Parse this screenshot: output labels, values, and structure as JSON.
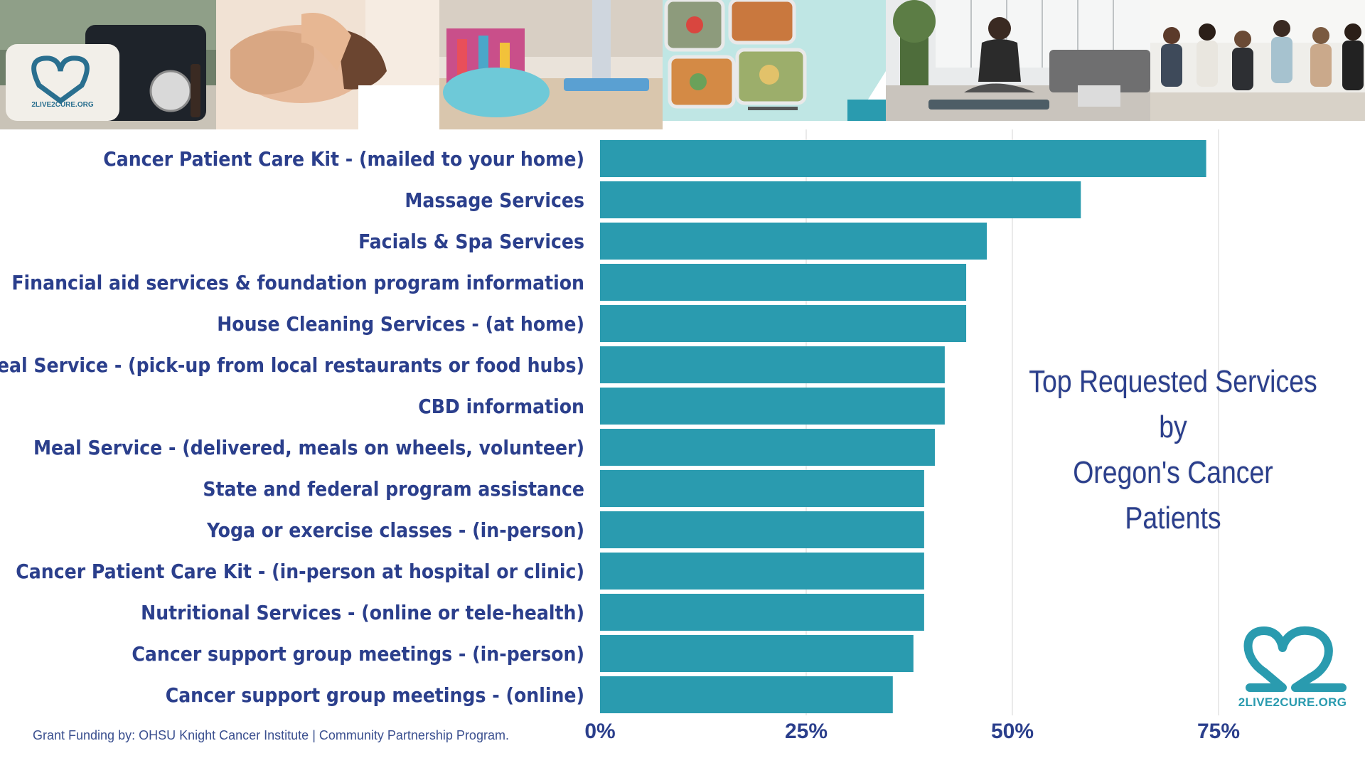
{
  "chart_data": {
    "type": "bar",
    "orientation": "horizontal",
    "title": "Top Requested Services by Oregon's Cancer Patients",
    "categories": [
      "Cancer Patient Care Kit - (mailed to your home)",
      "Massage Services",
      "Facials & Spa Services",
      "Financial aid services & foundation program information",
      "House Cleaning Services - (at home)",
      "Meal Service - (pick-up from local restaurants or food hubs)",
      "CBD information",
      "Meal Service - (delivered, meals on wheels, volunteer)",
      "State and federal program assistance",
      "Yoga or exercise classes - (in-person)",
      "Cancer Patient Care Kit - (in-person at hospital or clinic)",
      "Nutritional Services - (online or tele-health)",
      "Cancer support group meetings - (in-person)",
      "Cancer support group meetings - (online)"
    ],
    "values": [
      73.5,
      58.3,
      46.9,
      44.4,
      44.4,
      41.8,
      41.8,
      40.6,
      39.3,
      39.3,
      39.3,
      39.3,
      38.0,
      35.5
    ],
    "xlim": [
      0,
      90
    ],
    "x_ticks": [
      0,
      25,
      50,
      75
    ],
    "x_tick_labels": [
      "0%",
      "25%",
      "50%",
      "75%"
    ],
    "grid": true,
    "bar_color": "#2a9baf",
    "label_color": "#2b3f8c"
  },
  "title_lines": [
    "Top Requested Services by",
    "Oregon's Cancer Patients"
  ],
  "footer": {
    "note": "Grant Funding by: OHSU Knight Cancer Institute | Community Partnership Program."
  },
  "logo": {
    "text": "2LIVE2CURE.ORG",
    "icon": "heart-2-logo-icon"
  },
  "banner": {
    "photos": [
      "care-kit-photo",
      "facial-massage-photo",
      "cleaning-supplies-photo",
      "meal-prep-photo",
      "yoga-photo",
      "support-group-photo"
    ],
    "kit_label": "2LIVE2CURE.ORG"
  }
}
